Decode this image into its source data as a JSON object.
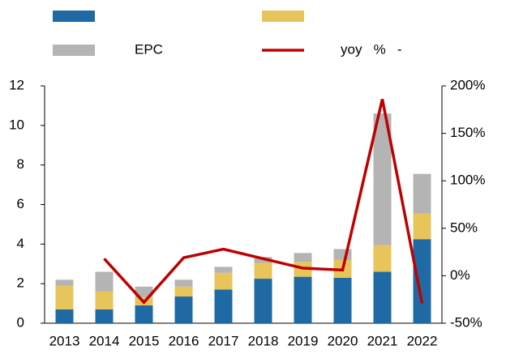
{
  "chart_data": {
    "type": "bar",
    "categories": [
      "2013",
      "2014",
      "2015",
      "2016",
      "2017",
      "2018",
      "2019",
      "2020",
      "2021",
      "2022"
    ],
    "series": [
      {
        "color": "#1f6aa5",
        "values": [
          0.7,
          0.7,
          0.9,
          1.35,
          1.7,
          2.25,
          2.35,
          2.3,
          2.6,
          4.25
        ]
      },
      {
        "color": "#e8c55a",
        "values": [
          1.2,
          0.9,
          0.4,
          0.5,
          0.85,
          0.8,
          0.75,
          0.9,
          1.35,
          1.3
        ]
      },
      {
        "name": "EPC",
        "color": "#b4b4b4",
        "values": [
          0.3,
          1.0,
          0.55,
          0.35,
          0.3,
          0.3,
          0.45,
          0.55,
          6.65,
          2.0
        ]
      },
      {
        "name": "yoy   %   -",
        "type": "line",
        "axis": "y2",
        "color": "#c00000",
        "values": [
          null,
          18,
          -28,
          19,
          28,
          18,
          8,
          6,
          186,
          -29
        ]
      }
    ],
    "ylim": [
      0,
      12
    ],
    "yticks": [
      0,
      2,
      4,
      6,
      8,
      10,
      12
    ],
    "y2lim": [
      -50,
      200
    ],
    "y2ticks": [
      {
        "value": -50,
        "label": "-50%"
      },
      {
        "value": 0,
        "label": "0%"
      },
      {
        "value": 50,
        "label": "50%"
      },
      {
        "value": 100,
        "label": "100%"
      },
      {
        "value": 150,
        "label": "150%"
      },
      {
        "value": 200,
        "label": "200%"
      }
    ]
  }
}
